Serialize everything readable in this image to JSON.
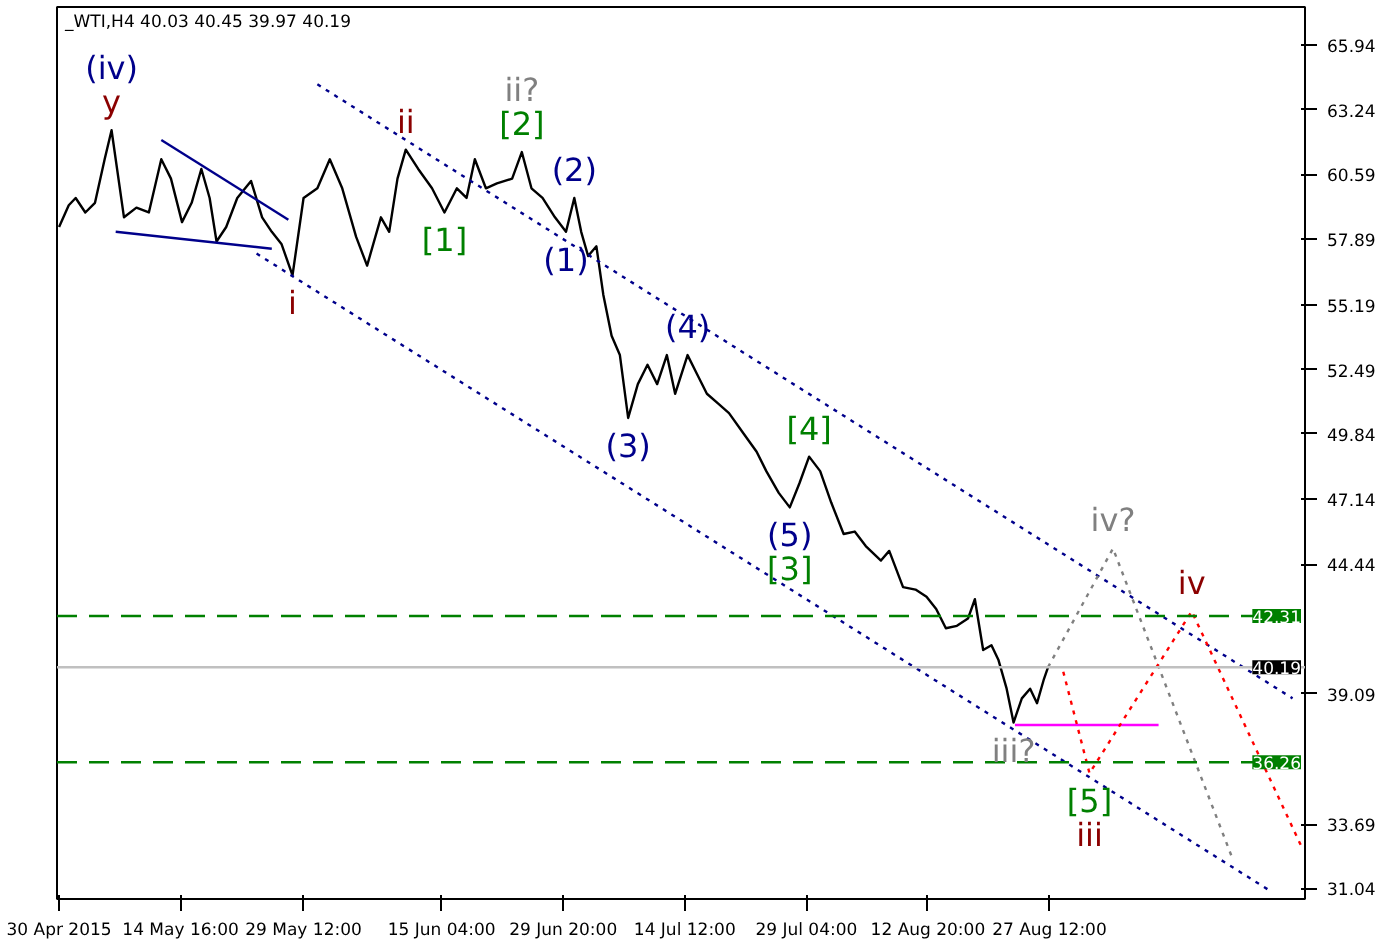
{
  "chart_data": {
    "type": "line",
    "title": "_WTI,H4  40.03 40.45 39.97 40.19",
    "xlim": [
      "2015-04-29T18:00",
      "2015-09-27T08:00"
    ],
    "ylim": [
      30.6,
      67.5
    ],
    "xticks": [
      {
        "value": "2015-04-30T00:00",
        "label": "30 Apr 2015"
      },
      {
        "value": "2015-05-14T16:00",
        "label": "14 May 16:00"
      },
      {
        "value": "2015-05-29T12:00",
        "label": "29 May 12:00"
      },
      {
        "value": "2015-06-15T04:00",
        "label": "15 Jun 04:00"
      },
      {
        "value": "2015-06-29T20:00",
        "label": "29 Jun 20:00"
      },
      {
        "value": "2015-07-14T12:00",
        "label": "14 Jul 12:00"
      },
      {
        "value": "2015-07-29T04:00",
        "label": "29 Jul 04:00"
      },
      {
        "value": "2015-08-12T20:00",
        "label": "12 Aug 20:00"
      },
      {
        "value": "2015-08-27T12:00",
        "label": "27 Aug 12:00"
      }
    ],
    "yticks": [
      31.04,
      33.69,
      39.09,
      44.44,
      47.14,
      49.84,
      52.49,
      55.19,
      57.89,
      60.59,
      63.24,
      65.94
    ],
    "grid": false,
    "ref_lines": [
      {
        "axis": "y",
        "value": 42.31,
        "label": "42.31",
        "color": "#008000",
        "line_style": "dashed"
      },
      {
        "axis": "y",
        "value": 40.19,
        "label": "40.19",
        "color": "#c0c0c0",
        "line_style": "solid"
      },
      {
        "axis": "y",
        "value": 36.26,
        "label": "36.26",
        "color": "#008000",
        "line_style": "dashed"
      }
    ],
    "series": [
      {
        "color": "#000000",
        "line_style": "solid",
        "x": [
          "2015-04-30T00:00",
          "2015-05-01T04:00",
          "2015-05-02T00:00",
          "2015-05-03T04:00",
          "2015-05-04T08:00",
          "2015-05-05T12:00",
          "2015-05-06T08:00",
          "2015-05-07T20:00",
          "2015-05-09T08:00",
          "2015-05-10T20:00",
          "2015-05-12T08:00",
          "2015-05-13T12:00",
          "2015-05-14T20:00",
          "2015-05-16T00:00",
          "2015-05-17T04:00",
          "2015-05-18T04:00",
          "2015-05-19T00:00",
          "2015-05-20T04:00",
          "2015-05-21T12:00",
          "2015-05-23T04:00",
          "2015-05-24T12:00",
          "2015-05-25T16:00",
          "2015-05-26T20:00",
          "2015-05-28T04:00",
          "2015-05-29T12:00",
          "2015-05-31T04:00",
          "2015-06-01T16:00",
          "2015-06-03T04:00",
          "2015-06-04T20:00",
          "2015-06-06T04:00",
          "2015-06-07T20:00",
          "2015-06-08T20:00",
          "2015-06-09T20:00",
          "2015-06-10T20:00",
          "2015-06-12T08:00",
          "2015-06-14T00:00",
          "2015-06-15T12:00",
          "2015-06-17T00:00",
          "2015-06-18T04:00",
          "2015-06-19T04:00",
          "2015-06-20T12:00",
          "2015-06-21T20:00",
          "2015-06-23T16:00",
          "2015-06-24T20:00",
          "2015-06-26T00:00",
          "2015-06-27T08:00",
          "2015-06-28T20:00",
          "2015-06-30T04:00",
          "2015-07-01T04:00",
          "2015-07-02T00:00",
          "2015-07-02T20:00",
          "2015-07-03T20:00",
          "2015-07-04T16:00",
          "2015-07-05T16:00",
          "2015-07-06T16:00",
          "2015-07-07T16:00",
          "2015-07-08T20:00",
          "2015-07-10T00:00",
          "2015-07-11T04:00",
          "2015-07-12T08:00",
          "2015-07-13T08:00",
          "2015-07-14T20:00",
          "2015-07-16T00:00",
          "2015-07-17T04:00",
          "2015-07-18T12:00",
          "2015-07-19T20:00",
          "2015-07-21T12:00",
          "2015-07-23T04:00",
          "2015-07-24T08:00",
          "2015-07-25T20:00",
          "2015-07-27T04:00",
          "2015-07-28T08:00",
          "2015-07-29T12:00",
          "2015-07-30T20:00",
          "2015-08-01T04:00",
          "2015-08-02T16:00",
          "2015-08-04T00:00",
          "2015-08-05T08:00",
          "2015-08-07T04:00",
          "2015-08-08T04:00",
          "2015-08-09T20:00",
          "2015-08-11T08:00",
          "2015-08-12T16:00",
          "2015-08-13T20:00",
          "2015-08-15T00:00",
          "2015-08-16T08:00",
          "2015-08-17T16:00",
          "2015-08-18T12:00",
          "2015-08-19T12:00",
          "2015-08-20T12:00",
          "2015-08-21T08:00",
          "2015-08-22T08:00",
          "2015-08-23T04:00",
          "2015-08-24T04:00",
          "2015-08-25T04:00",
          "2015-08-26T00:00",
          "2015-08-26T20:00",
          "2015-08-27T08:00"
        ],
        "values": [
          58.4,
          59.3,
          59.6,
          59.0,
          59.4,
          61.2,
          62.4,
          58.8,
          59.2,
          59.0,
          61.2,
          60.4,
          58.6,
          59.4,
          60.8,
          59.6,
          57.8,
          58.4,
          59.6,
          60.3,
          58.8,
          58.2,
          57.7,
          56.4,
          59.6,
          60.0,
          61.2,
          60.0,
          58.0,
          56.8,
          58.8,
          58.2,
          60.4,
          61.6,
          60.8,
          60.0,
          59.0,
          60.0,
          59.6,
          61.2,
          60.0,
          60.2,
          60.4,
          61.5,
          60.0,
          59.6,
          58.8,
          58.2,
          59.6,
          58.2,
          57.2,
          57.6,
          55.6,
          53.9,
          53.1,
          50.5,
          51.9,
          52.7,
          51.9,
          53.1,
          51.5,
          53.1,
          52.3,
          51.5,
          51.1,
          50.7,
          49.9,
          49.1,
          48.3,
          47.4,
          46.8,
          47.8,
          48.9,
          48.3,
          47.0,
          45.7,
          45.8,
          45.2,
          44.6,
          45.0,
          43.5,
          43.4,
          43.1,
          42.6,
          41.8,
          41.9,
          42.2,
          43.0,
          40.9,
          41.1,
          40.5,
          39.3,
          37.9,
          38.9,
          39.3,
          38.7,
          39.7,
          40.19
        ]
      },
      {
        "type": "line",
        "color": "#00008b",
        "line_style": "dotted",
        "x": [
          "2015-05-31T04:00",
          "2015-09-25T20:00"
        ],
        "values": [
          64.3,
          38.9
        ]
      },
      {
        "type": "line",
        "color": "#00008b",
        "line_style": "dotted",
        "x": [
          "2015-05-23T20:00",
          "2015-09-22T20:00"
        ],
        "values": [
          57.3,
          31.0
        ]
      },
      {
        "type": "line",
        "color": "#00008b",
        "line_style": "solid",
        "x": [
          "2015-05-12T08:00",
          "2015-05-27T16:00"
        ],
        "values": [
          62.0,
          58.7
        ]
      },
      {
        "type": "line",
        "color": "#00008b",
        "line_style": "solid",
        "x": [
          "2015-05-06T20:00",
          "2015-05-25T16:00"
        ],
        "values": [
          58.2,
          57.5
        ]
      },
      {
        "type": "line",
        "color": "#ff00ff",
        "line_style": "solid",
        "x": [
          "2015-08-23T08:00",
          "2015-09-09T16:00"
        ],
        "values": [
          37.8,
          37.8
        ]
      },
      {
        "type": "line",
        "color": "#808080",
        "line_style": "dotted",
        "x": [
          "2015-08-27T08:00",
          "2015-09-04T04:00",
          "2015-09-18T16:00"
        ],
        "values": [
          40.19,
          45.1,
          32.2
        ]
      },
      {
        "type": "line",
        "color": "#ff0000",
        "line_style": "dotted",
        "x": [
          "2015-08-29T04:00",
          "2015-09-01T08:00",
          "2015-09-13T16:00",
          "2015-09-27T00:00"
        ],
        "values": [
          40.0,
          35.8,
          42.5,
          32.7
        ]
      }
    ],
    "annotations": [
      {
        "text": "(iv)",
        "x": "2015-05-06T08:00",
        "y": 62.4
      },
      {
        "text": "y",
        "x": "2015-05-06T08:00",
        "y": 62.4
      },
      {
        "text": "ii",
        "x": "2015-06-10T20:00",
        "y": 61.6
      },
      {
        "text": "ii?",
        "x": "2015-06-24T20:00",
        "y": 61.5
      },
      {
        "text": "[2]",
        "x": "2015-06-24T20:00",
        "y": 61.5
      },
      {
        "text": "(2)",
        "x": "2015-07-01T04:00",
        "y": 59.6
      },
      {
        "text": "[1]",
        "x": "2015-06-15T12:00",
        "y": 59.0
      },
      {
        "text": "(1)",
        "x": "2015-06-30T04:00",
        "y": 58.2
      },
      {
        "text": "i",
        "x": "2015-05-28T04:00",
        "y": 56.4
      },
      {
        "text": "(4)",
        "x": "2015-07-14T20:00",
        "y": 53.1
      },
      {
        "text": "(3)",
        "x": "2015-07-07T16:00",
        "y": 50.5
      },
      {
        "text": "[4]",
        "x": "2015-07-29T12:00",
        "y": 48.9
      },
      {
        "text": "(5)",
        "x": "2015-07-27T04:00",
        "y": 46.8
      },
      {
        "text": "[3]",
        "x": "2015-07-27T04:00",
        "y": 46.8
      },
      {
        "text": "iv?",
        "x": "2015-09-04T04:00",
        "y": 45.1
      },
      {
        "text": "iv",
        "x": "2015-09-13T16:00",
        "y": 42.5
      },
      {
        "text": "iii?",
        "x": "2015-08-23T04:00",
        "y": 37.9
      },
      {
        "text": "[5]",
        "x": "2015-09-01T08:00",
        "y": 35.8
      },
      {
        "text": "iii",
        "x": "2015-09-01T08:00",
        "y": 35.8
      }
    ]
  }
}
